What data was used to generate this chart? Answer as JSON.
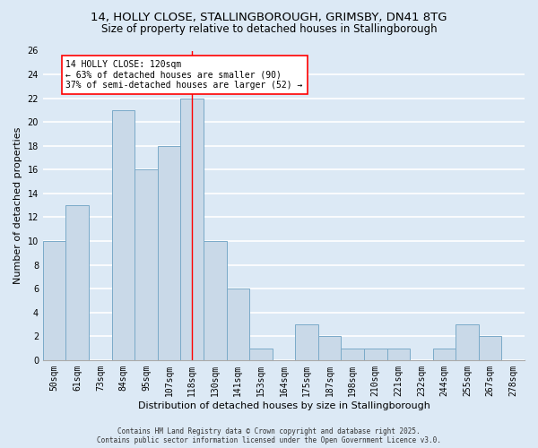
{
  "title_line1": "14, HOLLY CLOSE, STALLINGBOROUGH, GRIMSBY, DN41 8TG",
  "title_line2": "Size of property relative to detached houses in Stallingborough",
  "xlabel": "Distribution of detached houses by size in Stallingborough",
  "ylabel": "Number of detached properties",
  "footer_line1": "Contains HM Land Registry data © Crown copyright and database right 2025.",
  "footer_line2": "Contains public sector information licensed under the Open Government Licence v3.0.",
  "categories": [
    "50sqm",
    "61sqm",
    "73sqm",
    "84sqm",
    "95sqm",
    "107sqm",
    "118sqm",
    "130sqm",
    "141sqm",
    "153sqm",
    "164sqm",
    "175sqm",
    "187sqm",
    "198sqm",
    "210sqm",
    "221sqm",
    "232sqm",
    "244sqm",
    "255sqm",
    "267sqm",
    "278sqm"
  ],
  "values": [
    10,
    13,
    0,
    21,
    16,
    18,
    22,
    10,
    6,
    1,
    0,
    3,
    2,
    1,
    1,
    1,
    0,
    1,
    3,
    2,
    0
  ],
  "bar_color": "#c9d9e8",
  "bar_edge_color": "#7aaac8",
  "vline_x": 6,
  "vline_color": "red",
  "annotation_text": "14 HOLLY CLOSE: 120sqm\n← 63% of detached houses are smaller (90)\n37% of semi-detached houses are larger (52) →",
  "annotation_box_color": "white",
  "annotation_box_edge_color": "red",
  "ylim": [
    0,
    26
  ],
  "yticks": [
    0,
    2,
    4,
    6,
    8,
    10,
    12,
    14,
    16,
    18,
    20,
    22,
    24,
    26
  ],
  "background_color": "#dce9f5",
  "grid_color": "white",
  "title_fontsize": 9.5,
  "subtitle_fontsize": 8.5,
  "axis_label_fontsize": 8,
  "tick_fontsize": 7,
  "annotation_fontsize": 7,
  "footer_fontsize": 5.5
}
